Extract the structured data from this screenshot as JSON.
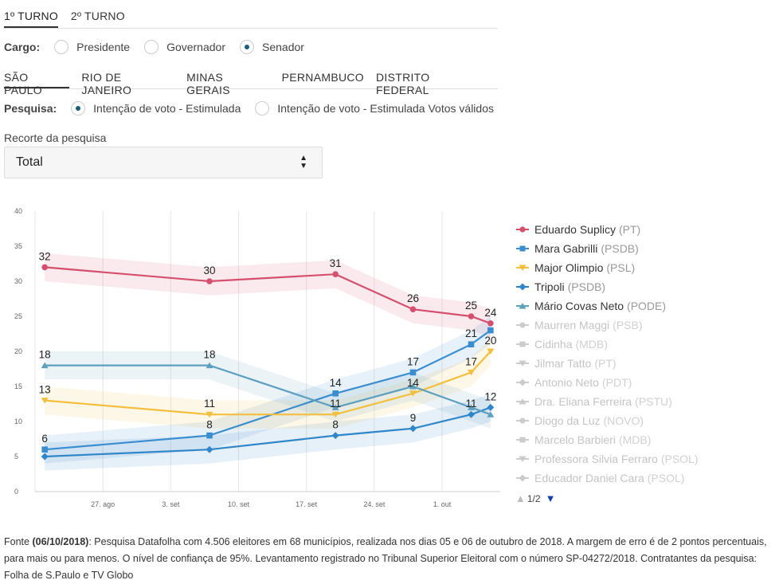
{
  "tabs": [
    {
      "label": "1º TURNO",
      "active": true
    },
    {
      "label": "2º TURNO",
      "active": false
    }
  ],
  "cargo": {
    "label": "Cargo:",
    "options": [
      {
        "label": "Presidente",
        "selected": false
      },
      {
        "label": "Governador",
        "selected": false
      },
      {
        "label": "Senador",
        "selected": true
      }
    ]
  },
  "states": [
    {
      "label": "SÃO PAULO",
      "active": true
    },
    {
      "label": "RIO DE JANEIRO",
      "active": false
    },
    {
      "label": "MINAS GERAIS",
      "active": false
    },
    {
      "label": "PERNAMBUCO",
      "active": false
    },
    {
      "label": "DISTRITO FEDERAL",
      "active": false
    }
  ],
  "pesquisa": {
    "label": "Pesquisa:",
    "options": [
      {
        "label": "Intenção de voto - Estimulada",
        "selected": true
      },
      {
        "label": "Intenção de voto - Estimulada Votos válidos",
        "selected": false
      }
    ]
  },
  "recorte": {
    "label": "Recorte da pesquisa",
    "value": "Total"
  },
  "legend_items": [
    {
      "name": "Eduardo Suplicy",
      "party": "(PT)",
      "color": "#d4506e",
      "marker": "circle",
      "active": true
    },
    {
      "name": "Mara Gabrilli",
      "party": "(PSDB)",
      "color": "#3a8ed0",
      "marker": "square",
      "active": true
    },
    {
      "name": "Major Olimpio",
      "party": "(PSL)",
      "color": "#f2bf3e",
      "marker": "triangle-down",
      "active": true
    },
    {
      "name": "Tripoli",
      "party": "(PSDB)",
      "color": "#2f86c9",
      "marker": "diamond",
      "active": true
    },
    {
      "name": "Mário Covas Neto",
      "party": "(PODE)",
      "color": "#5c9fbf",
      "marker": "triangle-up",
      "active": true
    },
    {
      "name": "Maurren Maggi",
      "party": "(PSB)",
      "color": "#cccccc",
      "marker": "circle",
      "active": false
    },
    {
      "name": "Cidinha",
      "party": "(MDB)",
      "color": "#cccccc",
      "marker": "square",
      "active": false
    },
    {
      "name": "Jilmar Tatto",
      "party": "(PT)",
      "color": "#cccccc",
      "marker": "triangle-down",
      "active": false
    },
    {
      "name": "Antonio Neto",
      "party": "(PDT)",
      "color": "#cccccc",
      "marker": "diamond",
      "active": false
    },
    {
      "name": "Dra. Eliana Ferreira",
      "party": "(PSTU)",
      "color": "#cccccc",
      "marker": "triangle-up",
      "active": false
    },
    {
      "name": "Diogo da Luz",
      "party": "(NOVO)",
      "color": "#cccccc",
      "marker": "circle",
      "active": false
    },
    {
      "name": "Marcelo Barbieri",
      "party": "(MDB)",
      "color": "#cccccc",
      "marker": "square",
      "active": false
    },
    {
      "name": "Professora Silvia Ferraro",
      "party": "(PSOL)",
      "color": "#cccccc",
      "marker": "triangle-down",
      "active": false
    },
    {
      "name": "Educador Daniel Cara",
      "party": "(PSOL)",
      "color": "#cccccc",
      "marker": "diamond",
      "active": false
    }
  ],
  "pager": {
    "label": "1/2"
  },
  "footer": {
    "source_label": "Fonte",
    "source_date": "(06/10/2018)",
    "text": ": Pesquisa Datafolha com 4.506 eleitores em 68 municípios, realizada nos dias 05 e 06 de outubro de 2018. A margem de erro é de 2 pontos percentuais, para mais ou para menos. O nível de confiança de 95%. Levantamento registrado no Tribunal Superior Eleitoral com o número SP-04272/2018. Contratantes da pesquisa: Folha de S.Paulo e TV Globo"
  },
  "chart_data": {
    "type": "line",
    "x": [
      "2018-08-21",
      "2018-09-07",
      "2018-09-20",
      "2018-09-28",
      "2018-10-04",
      "2018-10-06"
    ],
    "x_tick_labels": [
      "27. ago",
      "3. set",
      "10. set",
      "17. set",
      "24. set",
      "1. out"
    ],
    "x_tick_dates": [
      "2018-08-27",
      "2018-09-03",
      "2018-09-10",
      "2018-09-17",
      "2018-09-24",
      "2018-10-01"
    ],
    "xlim": [
      "2018-08-20",
      "2018-10-07"
    ],
    "ylim": [
      0,
      40
    ],
    "y_ticks": [
      0,
      5,
      10,
      15,
      20,
      25,
      30,
      35,
      40
    ],
    "margin_of_error": 2,
    "grid": "x",
    "legend": "right",
    "series": [
      {
        "name": "Eduardo Suplicy (PT)",
        "color": "#d4506e",
        "marker": "circle",
        "values": [
          32,
          30,
          31,
          26,
          25,
          24
        ],
        "labels": [
          true,
          true,
          true,
          true,
          true,
          true
        ]
      },
      {
        "name": "Mara Gabrilli (PSDB)",
        "color": "#3a8ed0",
        "marker": "square",
        "values": [
          6,
          8,
          14,
          17,
          21,
          23
        ],
        "labels": [
          true,
          true,
          true,
          true,
          true,
          false
        ]
      },
      {
        "name": "Major Olimpio (PSL)",
        "color": "#f2bf3e",
        "marker": "triangle-down",
        "values": [
          13,
          11,
          11,
          14,
          17,
          20
        ],
        "labels": [
          true,
          true,
          true,
          true,
          true,
          true
        ]
      },
      {
        "name": "Tripoli (PSDB)",
        "color": "#2f86c9",
        "marker": "diamond",
        "values": [
          5,
          6,
          8,
          9,
          11,
          12
        ],
        "labels": [
          false,
          false,
          true,
          true,
          true,
          true
        ]
      },
      {
        "name": "Mário Covas Neto (PODE)",
        "color": "#5c9fbf",
        "marker": "triangle-up",
        "values": [
          18,
          18,
          12,
          15,
          12,
          11
        ],
        "labels": [
          true,
          true,
          false,
          false,
          false,
          false
        ]
      }
    ]
  }
}
